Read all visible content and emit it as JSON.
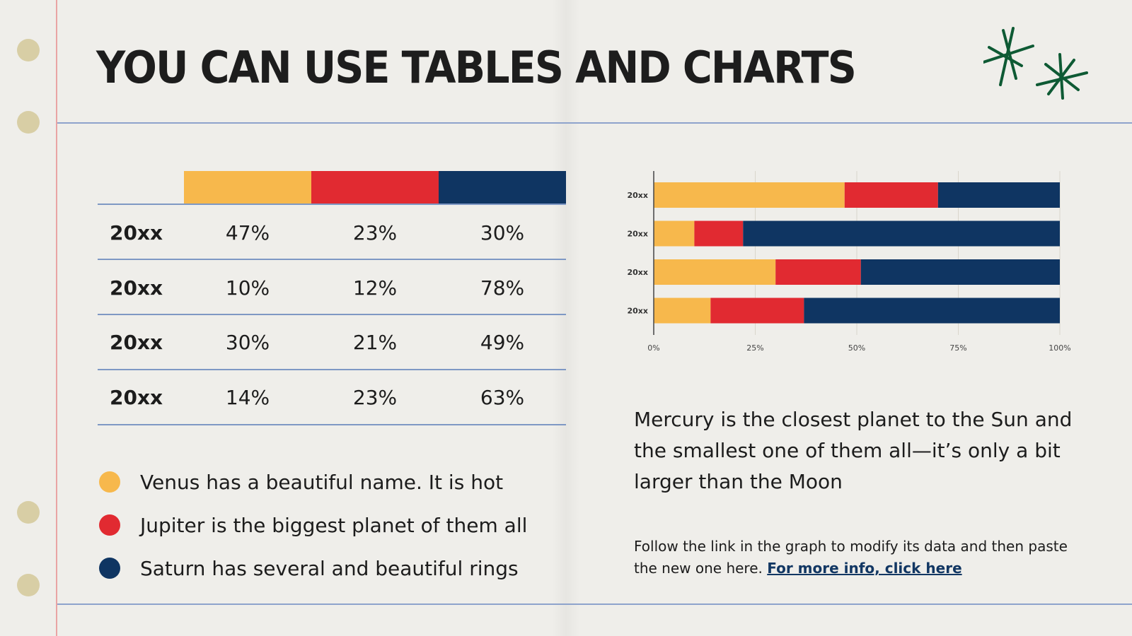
{
  "title": "YOU CAN USE TABLES AND CHARTS",
  "colors": {
    "yellow": "#f7b84c",
    "red": "#e12a31",
    "navy": "#0f3562",
    "rule": "#8ea3cc",
    "margin_line": "#e9a4a4",
    "hole": "#d8cea5",
    "star": "#0e5a34"
  },
  "table": {
    "rows": [
      {
        "year": "20xx",
        "values": [
          "47%",
          "23%",
          "30%"
        ]
      },
      {
        "year": "20xx",
        "values": [
          "10%",
          "12%",
          "78%"
        ]
      },
      {
        "year": "20xx",
        "values": [
          "30%",
          "21%",
          "49%"
        ]
      },
      {
        "year": "20xx",
        "values": [
          "14%",
          "23%",
          "63%"
        ]
      }
    ]
  },
  "legend": [
    {
      "text": "Venus has a beautiful name. It is hot",
      "color": "#f7b84c"
    },
    {
      "text": "Jupiter is the biggest planet of them all",
      "color": "#e12a31"
    },
    {
      "text": "Saturn has several and beautiful rings",
      "color": "#0f3562"
    }
  ],
  "chart_data": {
    "type": "bar",
    "orientation": "horizontal",
    "stacked": true,
    "categories": [
      "20xx",
      "20xx",
      "20xx",
      "20xx"
    ],
    "series": [
      {
        "values": [
          47,
          10,
          30,
          14
        ],
        "color": "#f7b84c"
      },
      {
        "values": [
          23,
          12,
          21,
          23
        ],
        "color": "#e12a31"
      },
      {
        "values": [
          30,
          78,
          49,
          63
        ],
        "color": "#0f3562"
      }
    ],
    "x_ticks": [
      "0%",
      "25%",
      "50%",
      "75%",
      "100%"
    ],
    "xlim": [
      0,
      100
    ],
    "grid": true,
    "title": "",
    "xlabel": "",
    "ylabel": ""
  },
  "description": "Mercury is the closest planet to the Sun and the smallest one of them all—it’s only a bit larger than the Moon",
  "note": {
    "text": "Follow the link in the graph to modify its data and then paste the new one here. ",
    "link_text": "For more info, click here"
  }
}
